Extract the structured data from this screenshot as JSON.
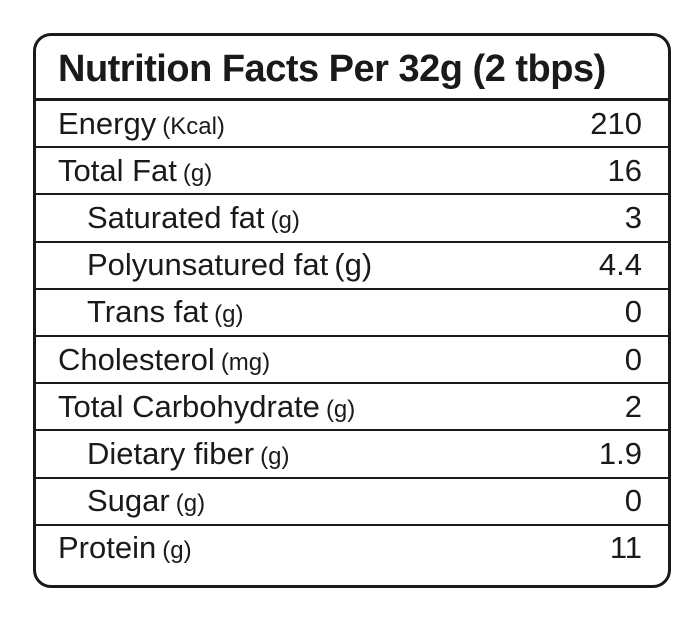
{
  "title": "Nutrition Facts Per 32g (2 tbps)",
  "rows": [
    {
      "name": "Energy",
      "unit": "(Kcal)",
      "value": "210"
    },
    {
      "name": "Total Fat",
      "unit": "(g)",
      "value": "16"
    },
    {
      "name": "Saturated fat",
      "unit": "(g)",
      "value": "3"
    },
    {
      "name": "Polyunsatured fat",
      "unit": "(g)",
      "value": "4.4"
    },
    {
      "name": "Trans fat",
      "unit": "(g)",
      "value": "0"
    },
    {
      "name": "Cholesterol",
      "unit": "(mg)",
      "value": "0"
    },
    {
      "name": "Total Carbohydrate",
      "unit": "(g)",
      "value": "2"
    },
    {
      "name": "Dietary fiber",
      "unit": "(g)",
      "value": "1.9"
    },
    {
      "name": "Sugar",
      "unit": "(g)",
      "value": "0"
    },
    {
      "name": "Protein",
      "unit": "(g)",
      "value": "11"
    }
  ]
}
